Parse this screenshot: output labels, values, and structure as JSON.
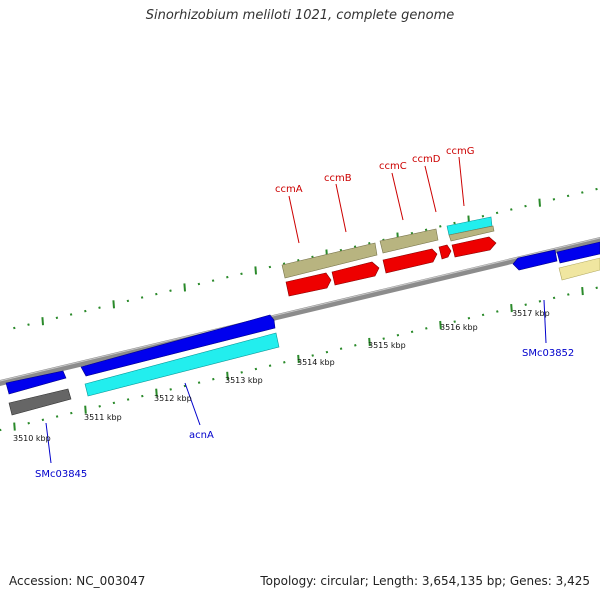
{
  "title": "Sinorhizobium meliloti 1021, complete genome",
  "footer": {
    "accession": "Accession: NC_003047",
    "summary": "Topology: circular; Length: 3,654,135 bp; Genes: 3,425"
  },
  "colors": {
    "backbone": "#8c8c8c",
    "tick": "#2a8a2a",
    "gene_label": "#cc0000",
    "locus_label": "#0000cc",
    "forward_gene": "#0000ee",
    "cds_cyan": "#22eeee",
    "khaki": "#b8b480",
    "red": "#ee0000",
    "grey": "#666666",
    "pale_yellow": "#f0e6a0"
  },
  "scale_labels": [
    {
      "text": "3510 kbp"
    },
    {
      "text": "3511 kbp"
    },
    {
      "text": "3512 kbp"
    },
    {
      "text": "3513 kbp"
    },
    {
      "text": "3514 kbp"
    },
    {
      "text": "3515 kbp"
    },
    {
      "text": "3516 kbp"
    },
    {
      "text": "3517 kbp"
    }
  ],
  "gene_labels": [
    {
      "text": "ccmA"
    },
    {
      "text": "ccmB"
    },
    {
      "text": "ccmC"
    },
    {
      "text": "ccmD"
    },
    {
      "text": "ccmG"
    }
  ],
  "locus_labels": [
    {
      "text": "SMc03845"
    },
    {
      "text": "acnA"
    },
    {
      "text": "SMc03852"
    }
  ]
}
